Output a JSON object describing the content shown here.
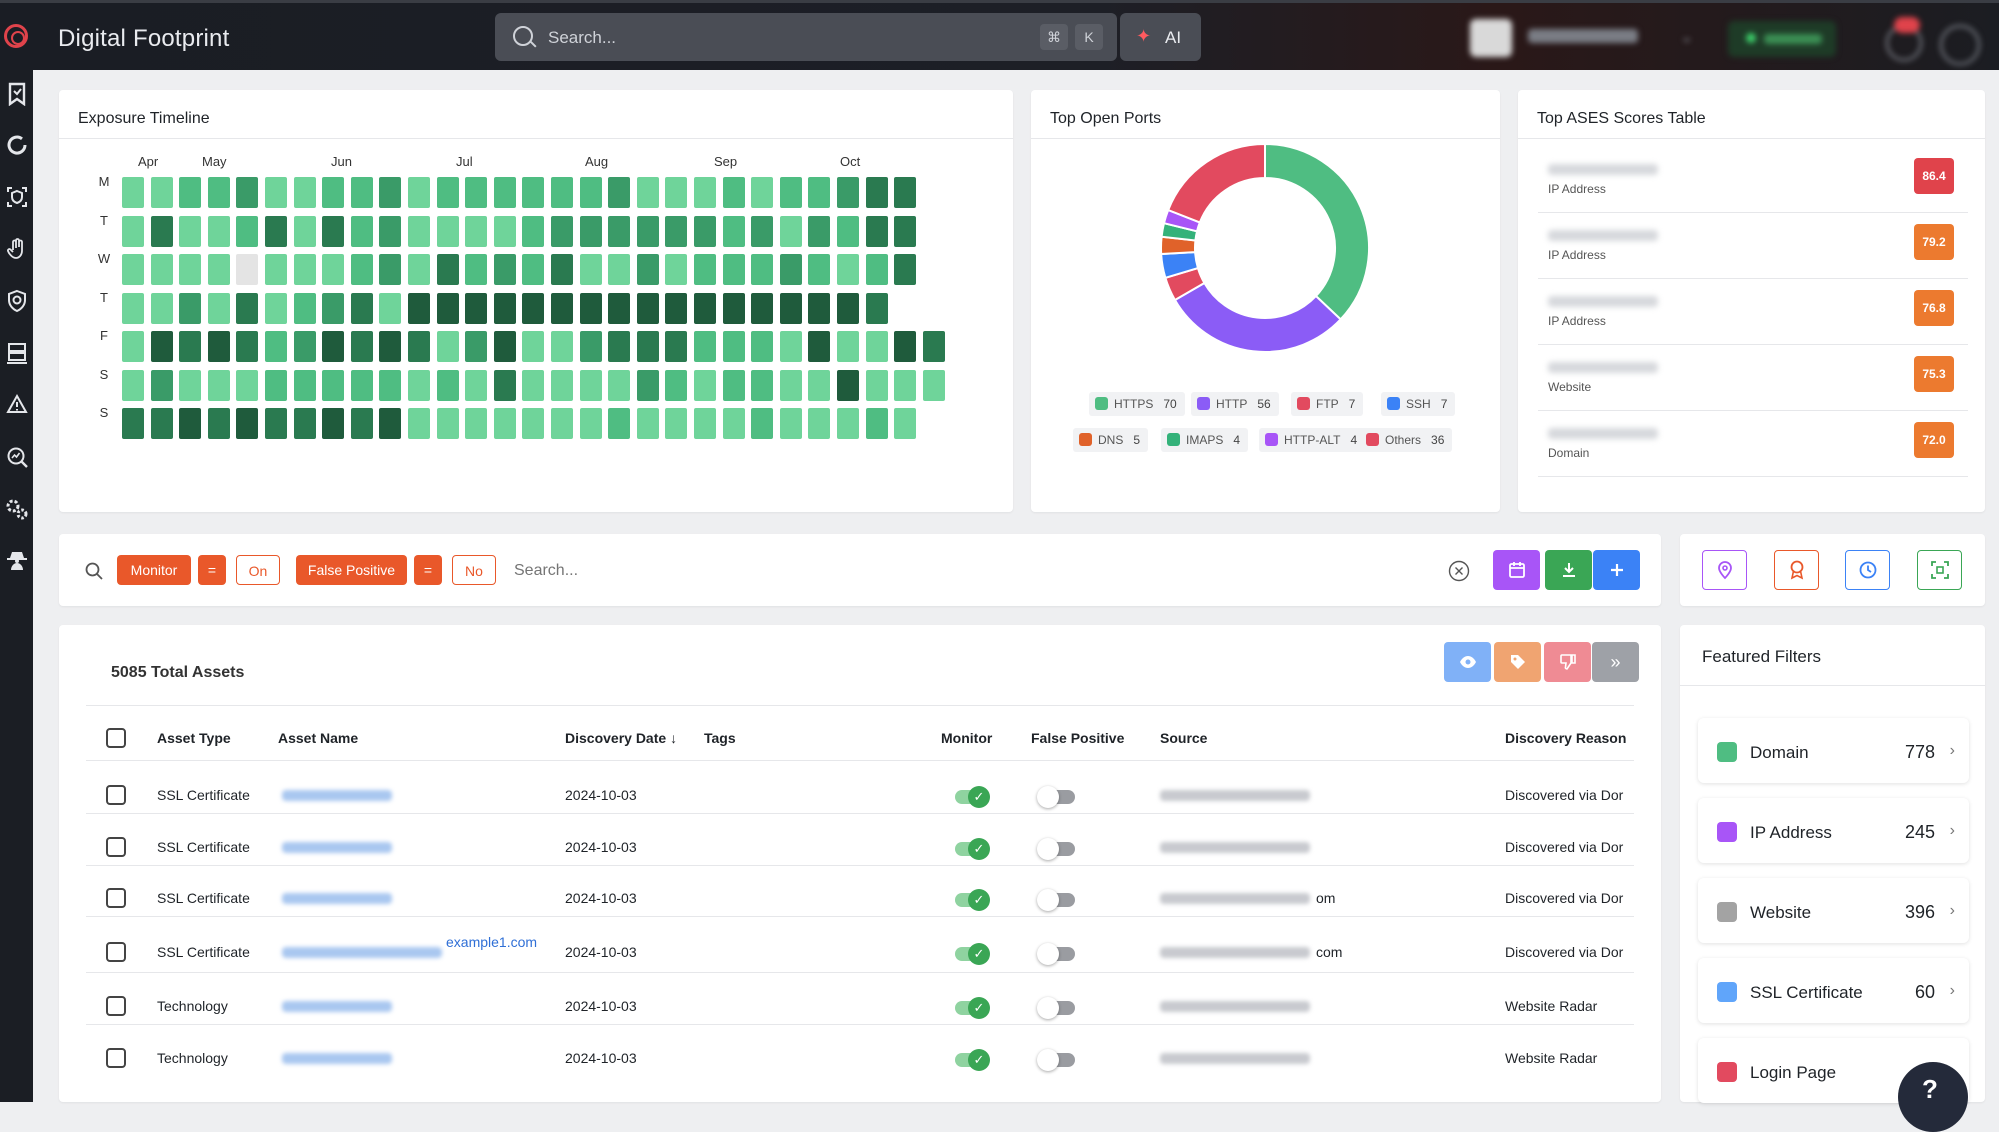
{
  "app": {
    "title": "Digital Footprint"
  },
  "search": {
    "placeholder": "Search...",
    "kbd_cmd": "⌘",
    "kbd_k": "K",
    "ai_label": "AI"
  },
  "sidebar": {
    "icons": [
      "bookmark-icon",
      "refresh-icon",
      "shield-scan-icon",
      "hand-icon",
      "target-shield-icon",
      "server-icon",
      "alert-icon",
      "search-chart-icon",
      "gears-icon",
      "spy-icon"
    ]
  },
  "exposure_timeline": {
    "title": "Exposure Timeline",
    "months": [
      "Apr",
      "May",
      "Jun",
      "Jul",
      "Aug",
      "Sep",
      "Oct"
    ],
    "days": [
      "M",
      "T",
      "W",
      "T",
      "F",
      "S",
      "S"
    ],
    "palette": [
      "#6fd49a",
      "#4fbd82",
      "#3a9b68",
      "#2a7a50",
      "#1f5b3c",
      "#e4e4e4"
    ],
    "levels": [
      "0011200112011111120001011233",
      "0300130312000012222221202133",
      "0000500012031213002011121013",
      "002030123044444444444444443",
      "04343124343024002333111040043",
      "02000111110103000021011004000",
      "3343433434000000010000100010"
    ]
  },
  "top_open_ports": {
    "title": "Top Open Ports",
    "chart_data": {
      "type": "pie",
      "categories": [
        "HTTPS",
        "HTTP",
        "FTP",
        "SSH",
        "DNS",
        "IMAPS",
        "HTTP-ALT",
        "Others"
      ],
      "values": [
        70,
        56,
        7,
        7,
        5,
        4,
        4,
        36
      ],
      "colors": [
        "#4fbd82",
        "#8b5cf6",
        "#e24a5f",
        "#3b82f6",
        "#e0622a",
        "#34b27a",
        "#a855f7",
        "#e24a5f"
      ],
      "donut": true,
      "legend_position": "bottom"
    }
  },
  "ases": {
    "title": "Top ASES Scores Table",
    "rows": [
      {
        "type": "IP Address",
        "score": "86.4",
        "color": "#e0434b"
      },
      {
        "type": "IP Address",
        "score": "79.2",
        "color": "#ec7a2f"
      },
      {
        "type": "IP Address",
        "score": "76.8",
        "color": "#ec7a2f"
      },
      {
        "type": "Website",
        "score": "75.3",
        "color": "#ec7a2f"
      },
      {
        "type": "Domain",
        "score": "72.0",
        "color": "#ec7a2f"
      }
    ]
  },
  "filters": {
    "monitor": "Monitor",
    "eq1": "=",
    "on": "On",
    "false_positive": "False Positive",
    "eq2": "=",
    "no": "No",
    "search_placeholder": "Search..."
  },
  "assets": {
    "total_label": "5085 Total Assets",
    "columns": {
      "asset_type": "Asset Type",
      "asset_name": "Asset Name",
      "discovery_date": "Discovery Date",
      "sort_arrow": "↓",
      "tags": "Tags",
      "monitor": "Monitor",
      "false_positive": "False Positive",
      "source": "Source",
      "discovery_reason": "Discovery Reason"
    },
    "rows": [
      {
        "type": "SSL Certificate",
        "name_suffix": "",
        "date": "2024-10-03",
        "source_suffix": "",
        "reason": "Discovered via Dor"
      },
      {
        "type": "SSL Certificate",
        "name_suffix": "",
        "date": "2024-10-03",
        "source_suffix": "",
        "reason": "Discovered via Dor"
      },
      {
        "type": "SSL Certificate",
        "name_suffix": "",
        "date": "2024-10-03",
        "source_suffix": "om",
        "reason": "Discovered via Dor"
      },
      {
        "type": "SSL Certificate",
        "name_suffix": "example1.com",
        "date": "2024-10-03",
        "source_suffix": "com",
        "reason": "Discovered via Dor"
      },
      {
        "type": "Technology",
        "name_suffix": "",
        "date": "2024-10-03",
        "source_suffix": "",
        "reason": "Website Radar"
      },
      {
        "type": "Technology",
        "name_suffix": "",
        "date": "2024-10-03",
        "source_suffix": "",
        "reason": "Website Radar"
      }
    ]
  },
  "featured_filters": {
    "title": "Featured Filters",
    "items": [
      {
        "name": "Domain",
        "count": "778",
        "color": "#4fbd82"
      },
      {
        "name": "IP Address",
        "count": "245",
        "color": "#a855f7"
      },
      {
        "name": "Website",
        "count": "396",
        "color": "#a3a3a3"
      },
      {
        "name": "SSL Certificate",
        "count": "60",
        "color": "#60a5fa"
      },
      {
        "name": "Login Page",
        "count": "",
        "color": "#e24a5f"
      }
    ]
  }
}
